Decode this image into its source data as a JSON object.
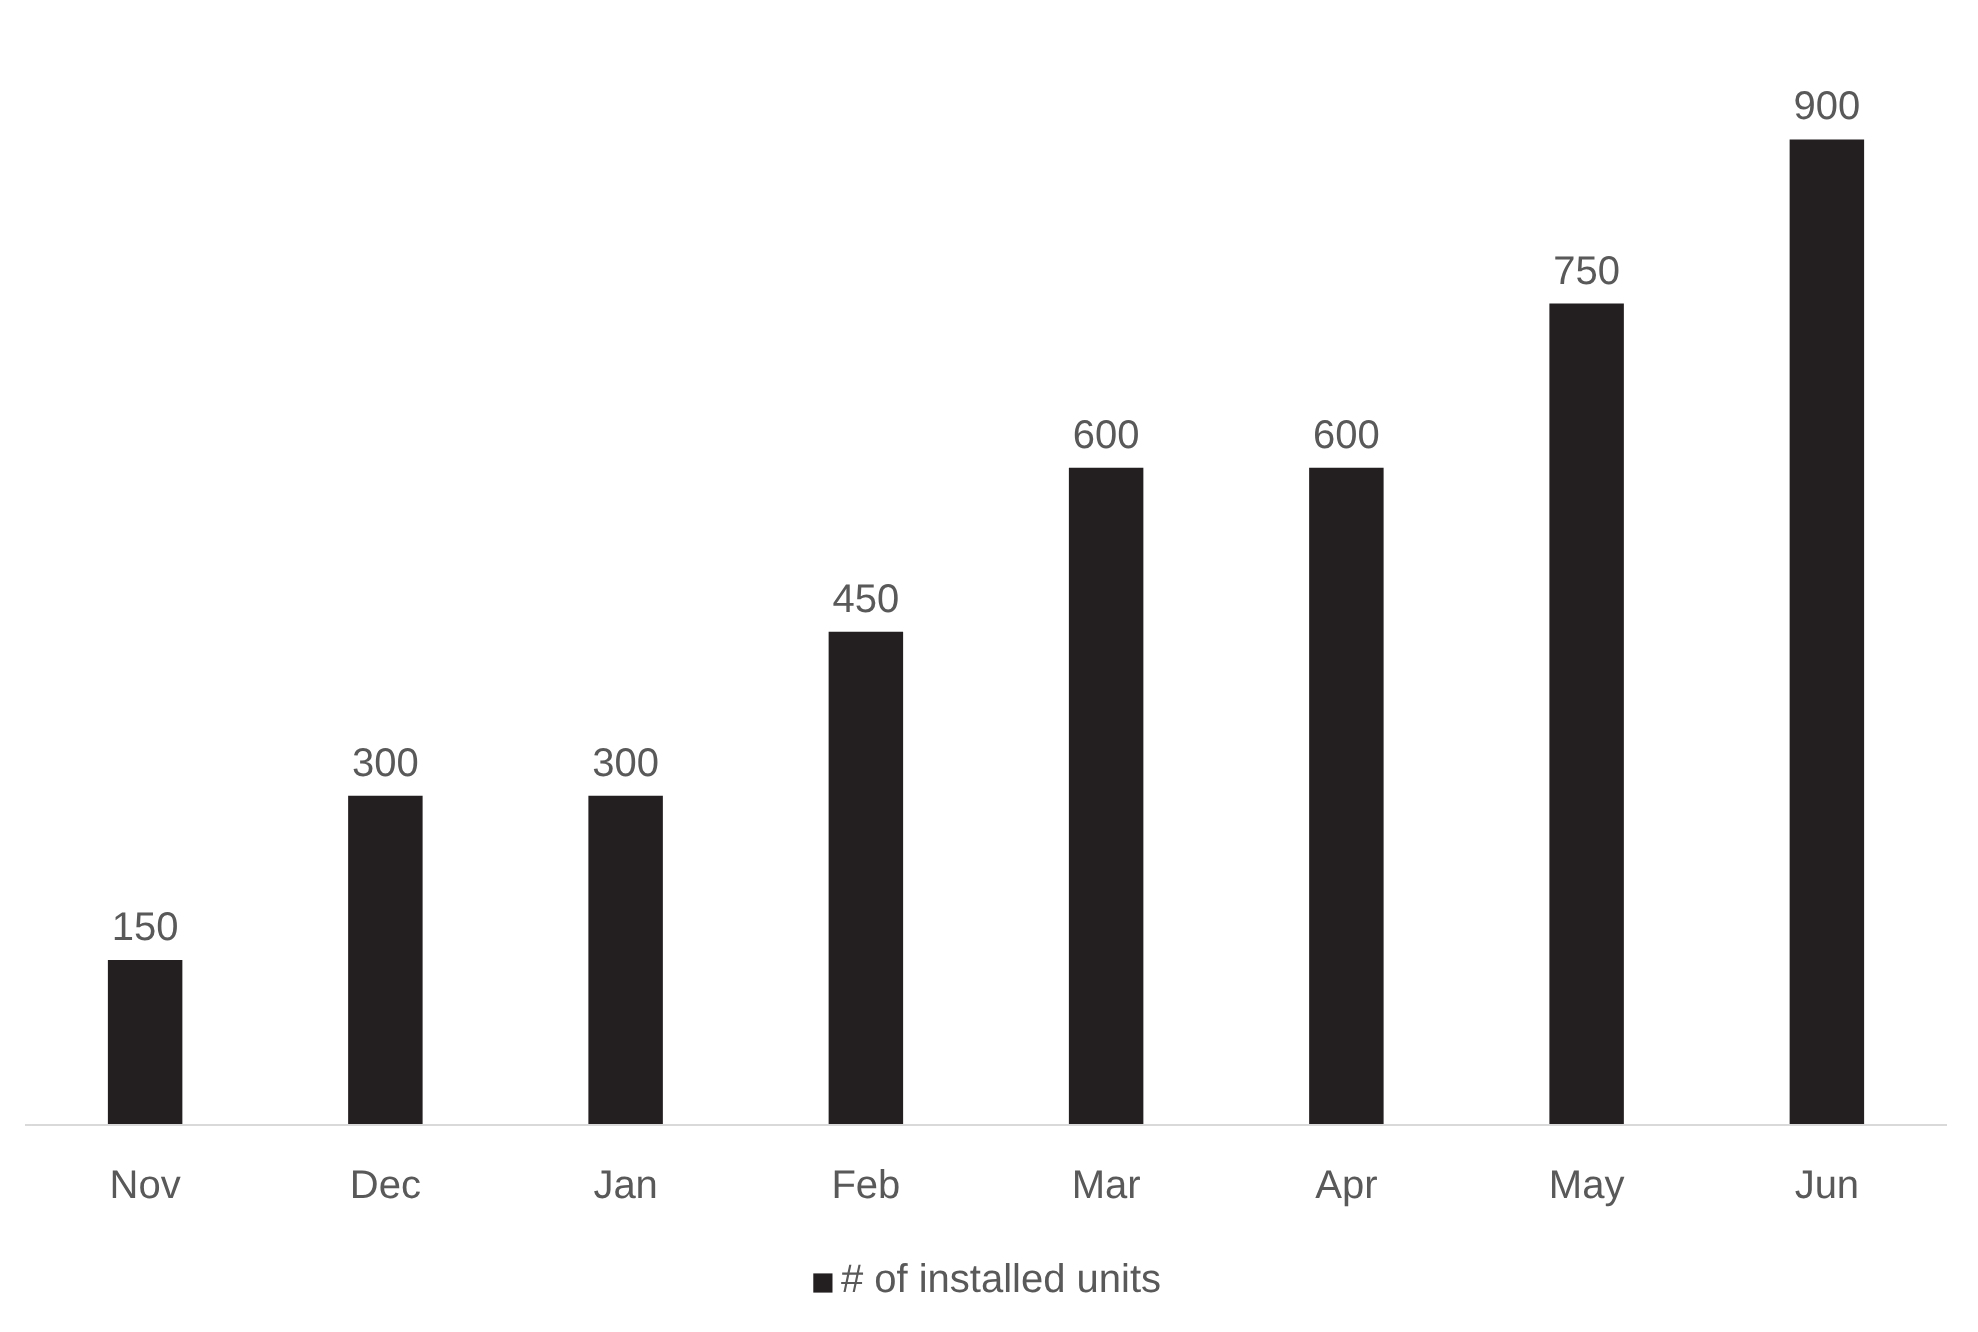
{
  "chart_data": {
    "type": "bar",
    "categories": [
      "Nov",
      "Dec",
      "Jan",
      "Feb",
      "Mar",
      "Apr",
      "May",
      "Jun"
    ],
    "series": [
      {
        "name": "# of installed units",
        "color": "#231f20",
        "values": [
          150,
          300,
          300,
          450,
          600,
          600,
          750,
          900
        ]
      }
    ],
    "data_labels": true,
    "legend": "bottom",
    "grid": false
  }
}
